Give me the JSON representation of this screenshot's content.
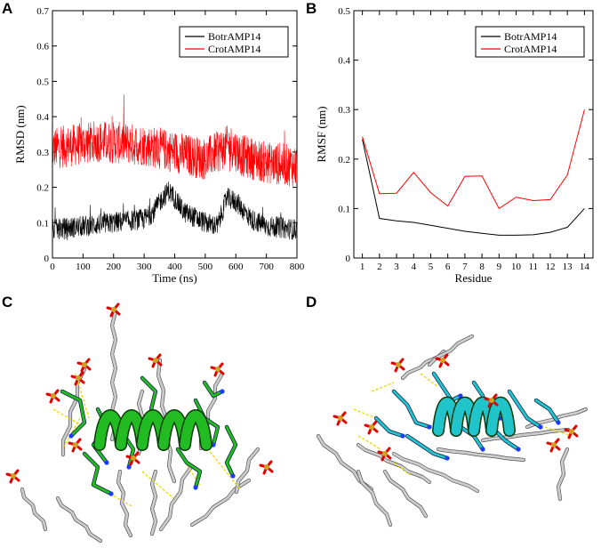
{
  "panels": {
    "a": "A",
    "b": "B",
    "c": "C",
    "d": "D"
  },
  "chart_data": [
    {
      "type": "line",
      "panel": "A",
      "xlabel": "Time (ns)",
      "ylabel": "RMSD (nm)",
      "xlim": [
        0,
        800
      ],
      "ylim": [
        0,
        0.7
      ],
      "xticks": [
        "0",
        "100",
        "200",
        "300",
        "400",
        "500",
        "600",
        "700",
        "800"
      ],
      "yticks": [
        "0",
        "0.1",
        "0.2",
        "0.3",
        "0.4",
        "0.5",
        "0.6",
        "0.7"
      ],
      "legend_position": "top-right",
      "series": [
        {
          "name": "BotrAMP14",
          "color": "#000000",
          "segments": [
            [
              0,
              0.08
            ],
            [
              100,
              0.09
            ],
            [
              200,
              0.1
            ],
            [
              300,
              0.11
            ],
            [
              330,
              0.13
            ],
            [
              360,
              0.17
            ],
            [
              380,
              0.19
            ],
            [
              400,
              0.17
            ],
            [
              430,
              0.13
            ],
            [
              500,
              0.1
            ],
            [
              540,
              0.09
            ],
            [
              570,
              0.17
            ],
            [
              600,
              0.16
            ],
            [
              650,
              0.11
            ],
            [
              700,
              0.09
            ],
            [
              800,
              0.08
            ]
          ],
          "noise": 0.03
        },
        {
          "name": "CrotAMP14",
          "color": "#ff0000",
          "segments": [
            [
              0,
              0.31
            ],
            [
              150,
              0.33
            ],
            [
              300,
              0.32
            ],
            [
              400,
              0.3
            ],
            [
              500,
              0.28
            ],
            [
              580,
              0.32
            ],
            [
              620,
              0.29
            ],
            [
              700,
              0.27
            ],
            [
              800,
              0.26
            ]
          ],
          "noise": 0.06
        }
      ]
    },
    {
      "type": "line",
      "panel": "B",
      "xlabel": "Residue",
      "ylabel": "RMSF (nm)",
      "x": [
        1,
        2,
        3,
        4,
        5,
        6,
        7,
        8,
        9,
        10,
        11,
        12,
        13,
        14
      ],
      "xlim": [
        0.5,
        14.5
      ],
      "ylim": [
        0,
        0.5
      ],
      "xticks": [
        "1",
        "2",
        "3",
        "4",
        "5",
        "6",
        "7",
        "8",
        "9",
        "10",
        "11",
        "12",
        "13",
        "14"
      ],
      "yticks": [
        "0",
        "0.1",
        "0.2",
        "0.3",
        "0.4",
        "0.5"
      ],
      "legend_position": "top-right",
      "series": [
        {
          "name": "BotrAMP14",
          "color": "#000000",
          "values": [
            0.24,
            0.08,
            0.075,
            0.072,
            0.066,
            0.06,
            0.054,
            0.05,
            0.046,
            0.046,
            0.047,
            0.052,
            0.062,
            0.1
          ]
        },
        {
          "name": "CrotAMP14",
          "color": "#ff0000",
          "values": [
            0.245,
            0.13,
            0.131,
            0.173,
            0.132,
            0.105,
            0.165,
            0.166,
            0.1,
            0.123,
            0.116,
            0.118,
            0.168,
            0.3
          ]
        }
      ]
    }
  ],
  "colors": {
    "peptide_c": "#22bb22",
    "peptide_d": "#22c4cc",
    "lipid": "#cccccc",
    "oxygen": "#e00000",
    "phosphorus": "#d2a020",
    "nitrogen": "#1c3cff",
    "hbond": "#e8d800"
  }
}
